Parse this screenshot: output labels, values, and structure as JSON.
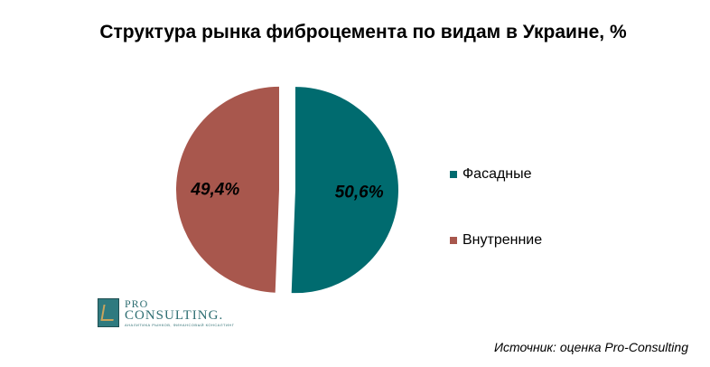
{
  "chart_data": {
    "type": "pie",
    "title": "Структура рынка фиброцемента по видам в Украине, %",
    "categories": [
      "Фасадные",
      "Внутренние"
    ],
    "values": [
      50.6,
      49.4
    ],
    "data_labels": [
      "50,6%",
      "49,4%"
    ],
    "colors": [
      "#006b6f",
      "#a8574d"
    ],
    "legend_position": "right",
    "exploded": true
  },
  "logo": {
    "pro": "PRO",
    "consulting": "CONSULTING.",
    "tagline": "АНАЛИТИКА РЫНКОВ, ФИНАНСОВЫЙ КОНСАЛТИНГ"
  },
  "source": "Источник: оценка Pro-Consulting"
}
